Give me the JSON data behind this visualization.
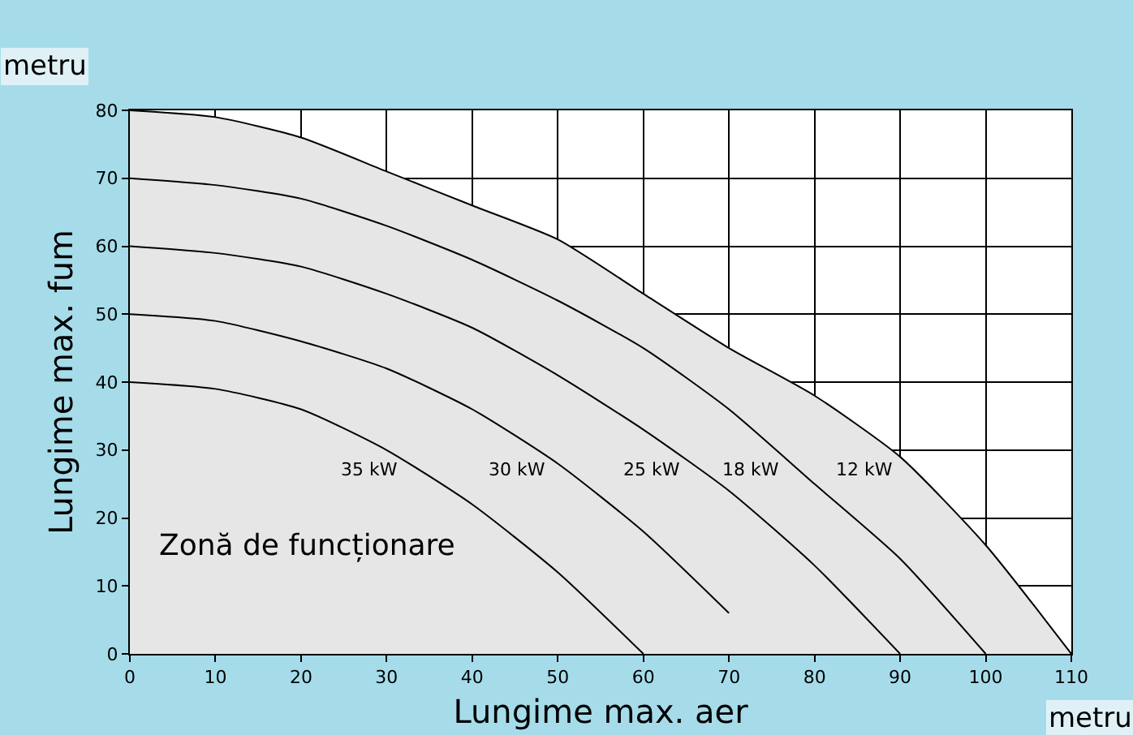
{
  "chart_data": {
    "type": "line",
    "xlabel": "Lungime max. aer",
    "ylabel": "Lungime max. fum",
    "x": [
      0,
      10,
      20,
      30,
      40,
      50,
      60,
      70,
      80,
      90,
      100,
      110
    ],
    "series": [
      {
        "name": "12 kW",
        "type": "area",
        "color": "#000000",
        "values": [
          80,
          79,
          76,
          71,
          66,
          61,
          53,
          45,
          38,
          29,
          16,
          0
        ]
      },
      {
        "name": "18 kW",
        "color": "#000000",
        "values": [
          70,
          69,
          67,
          63,
          58,
          52,
          45,
          36,
          25,
          14,
          0,
          null
        ]
      },
      {
        "name": "25 kW",
        "color": "#000000",
        "values": [
          60,
          59,
          57,
          53,
          48,
          41,
          33,
          24,
          13,
          0,
          null,
          null
        ]
      },
      {
        "name": "30 kW",
        "color": "#000000",
        "values": [
          50,
          49,
          46,
          42,
          36,
          28,
          18,
          6,
          null,
          null,
          null,
          null
        ]
      },
      {
        "name": "35 kW",
        "color": "#000000",
        "values": [
          40,
          39,
          36,
          30,
          22,
          12,
          0,
          null,
          null,
          null,
          null,
          null
        ]
      }
    ],
    "xlim": [
      0,
      110
    ],
    "ylim": [
      0,
      80
    ],
    "xticks": [
      0,
      10,
      20,
      30,
      40,
      50,
      60,
      70,
      80,
      90,
      100,
      110
    ],
    "yticks": [
      0,
      10,
      20,
      30,
      40,
      50,
      60,
      70,
      80
    ],
    "grid": true,
    "legend": false,
    "marker": "none",
    "line_style": "solid",
    "annotations": [
      "metru",
      "metru",
      "Zonă de funcționare"
    ]
  }
}
